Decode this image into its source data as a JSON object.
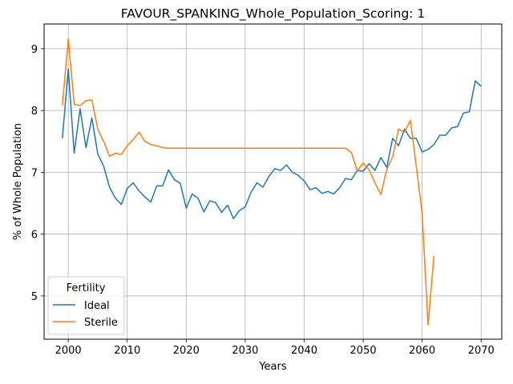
{
  "chart_data": {
    "type": "line",
    "title": "FAVOUR_SPANKING_Whole_Population_Scoring: 1",
    "xlabel": "Years",
    "ylabel": "% of Whole Population",
    "xlim": [
      1995.9,
      2073.5
    ],
    "ylim": [
      4.3,
      9.4
    ],
    "xticks": [
      2000,
      2010,
      2020,
      2030,
      2040,
      2050,
      2060,
      2070
    ],
    "yticks": [
      5,
      6,
      7,
      8,
      9
    ],
    "grid": true,
    "legend": {
      "title": "Fertility",
      "position": "lower-left"
    },
    "colors": {
      "Ideal": "#1f77b4",
      "Sterile": "#ff7f0e"
    },
    "series": [
      {
        "name": "Ideal",
        "x": [
          1999,
          2000,
          2001,
          2002,
          2003,
          2004,
          2005,
          2006,
          2007,
          2008,
          2009,
          2010,
          2011,
          2012,
          2013,
          2014,
          2015,
          2016,
          2017,
          2018,
          2019,
          2020,
          2021,
          2022,
          2023,
          2024,
          2025,
          2026,
          2027,
          2028,
          2029,
          2030,
          2031,
          2032,
          2033,
          2034,
          2035,
          2036,
          2037,
          2038,
          2039,
          2040,
          2041,
          2042,
          2043,
          2044,
          2045,
          2046,
          2047,
          2048,
          2049,
          2050,
          2051,
          2052,
          2053,
          2054,
          2055,
          2056,
          2057,
          2058,
          2059,
          2060,
          2061,
          2062,
          2063,
          2064,
          2065,
          2066,
          2067,
          2068,
          2069,
          2070
        ],
        "values": [
          7.55,
          8.67,
          7.31,
          8.03,
          7.4,
          7.88,
          7.3,
          7.1,
          6.76,
          6.58,
          6.48,
          6.74,
          6.83,
          6.7,
          6.6,
          6.52,
          6.78,
          6.78,
          7.04,
          6.88,
          6.82,
          6.42,
          6.65,
          6.58,
          6.36,
          6.54,
          6.51,
          6.35,
          6.47,
          6.25,
          6.38,
          6.44,
          6.68,
          6.83,
          6.76,
          6.93,
          7.06,
          7.03,
          7.12,
          7.0,
          6.95,
          6.86,
          6.72,
          6.75,
          6.66,
          6.69,
          6.65,
          6.75,
          6.9,
          6.88,
          7.03,
          7.02,
          7.14,
          7.03,
          7.24,
          7.08,
          7.55,
          7.43,
          7.7,
          7.55,
          7.55,
          7.33,
          7.37,
          7.45,
          7.6,
          7.6,
          7.72,
          7.74,
          7.96,
          7.98,
          8.48,
          8.39
        ]
      },
      {
        "name": "Sterile",
        "x": [
          1999,
          2000,
          2001,
          2002,
          2003,
          2004,
          2005,
          2006,
          2007,
          2008,
          2009,
          2010,
          2011,
          2012,
          2013,
          2014,
          2015,
          2016,
          2017,
          2018,
          2019,
          2020,
          2021,
          2022,
          2023,
          2024,
          2025,
          2026,
          2027,
          2028,
          2029,
          2030,
          2031,
          2032,
          2033,
          2034,
          2035,
          2036,
          2037,
          2038,
          2039,
          2040,
          2041,
          2042,
          2043,
          2044,
          2045,
          2046,
          2047,
          2048,
          2049,
          2050,
          2051,
          2052,
          2053,
          2054,
          2055,
          2056,
          2057,
          2058,
          2059,
          2060,
          2061,
          2062
        ],
        "values": [
          8.08,
          9.16,
          8.1,
          8.08,
          8.16,
          8.17,
          7.7,
          7.5,
          7.26,
          7.31,
          7.29,
          7.43,
          7.53,
          7.65,
          7.5,
          7.45,
          7.43,
          7.4,
          7.39,
          7.39,
          7.39,
          7.39,
          7.39,
          7.39,
          7.39,
          7.39,
          7.39,
          7.39,
          7.39,
          7.39,
          7.39,
          7.39,
          7.39,
          7.39,
          7.39,
          7.39,
          7.39,
          7.39,
          7.39,
          7.39,
          7.39,
          7.39,
          7.39,
          7.39,
          7.39,
          7.39,
          7.39,
          7.39,
          7.39,
          7.32,
          7.02,
          7.15,
          7.04,
          6.83,
          6.64,
          7.05,
          7.25,
          7.7,
          7.65,
          7.84,
          7.1,
          6.33,
          4.53,
          5.65
        ]
      }
    ]
  }
}
